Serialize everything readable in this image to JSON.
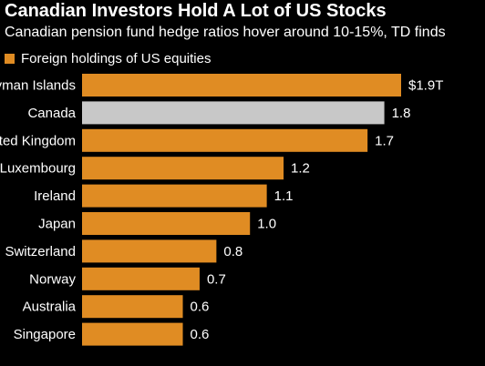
{
  "colors": {
    "background": "#000000",
    "bar": "#e08c23",
    "highlight": "#c8c8c8",
    "text": "#ffffff"
  },
  "chart_data": {
    "type": "bar",
    "orientation": "horizontal",
    "title": "Canadian Investors Hold A Lot of US Stocks",
    "subtitle": "Canadian pension fund hedge ratios hover around 10-15%, TD finds",
    "legend": "Foreign holdings of US equities",
    "legend_position": "top-left",
    "grid": false,
    "categories": [
      "Cayman Islands",
      "Canada",
      "United Kingdom",
      "Luxembourg",
      "Ireland",
      "Japan",
      "Switzerland",
      "Norway",
      "Australia",
      "Singapore"
    ],
    "values": [
      1.9,
      1.8,
      1.7,
      1.2,
      1.1,
      1.0,
      0.8,
      0.7,
      0.6,
      0.6
    ],
    "value_labels": [
      "$1.9T",
      "1.8",
      "1.7",
      "1.2",
      "1.1",
      "1.0",
      "0.8",
      "0.7",
      "0.6",
      "0.6"
    ],
    "highlight_category": "Canada",
    "xlim": [
      0,
      1.9
    ]
  }
}
